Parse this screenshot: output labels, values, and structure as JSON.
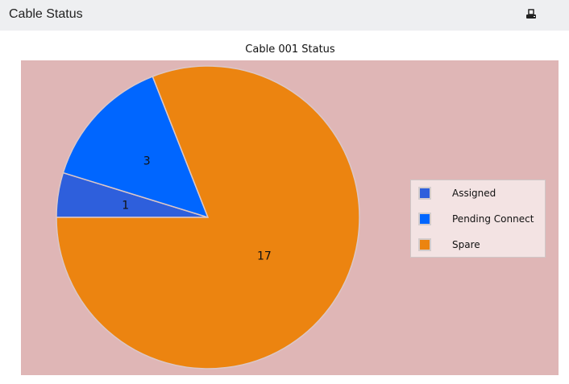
{
  "header": {
    "title": "Cable Status",
    "print_icon": "printer-icon"
  },
  "chart_data": {
    "type": "pie",
    "title": "Cable 001 Status",
    "categories": [
      "Assigned",
      "Pending Connect",
      "Spare"
    ],
    "values": [
      1,
      3,
      17
    ],
    "colors": [
      "#2e5fdc",
      "#0066ff",
      "#ec8410"
    ],
    "data_labels": [
      "1",
      "3",
      "17"
    ],
    "legend_placement": "right",
    "background": "#dfb6b6"
  }
}
